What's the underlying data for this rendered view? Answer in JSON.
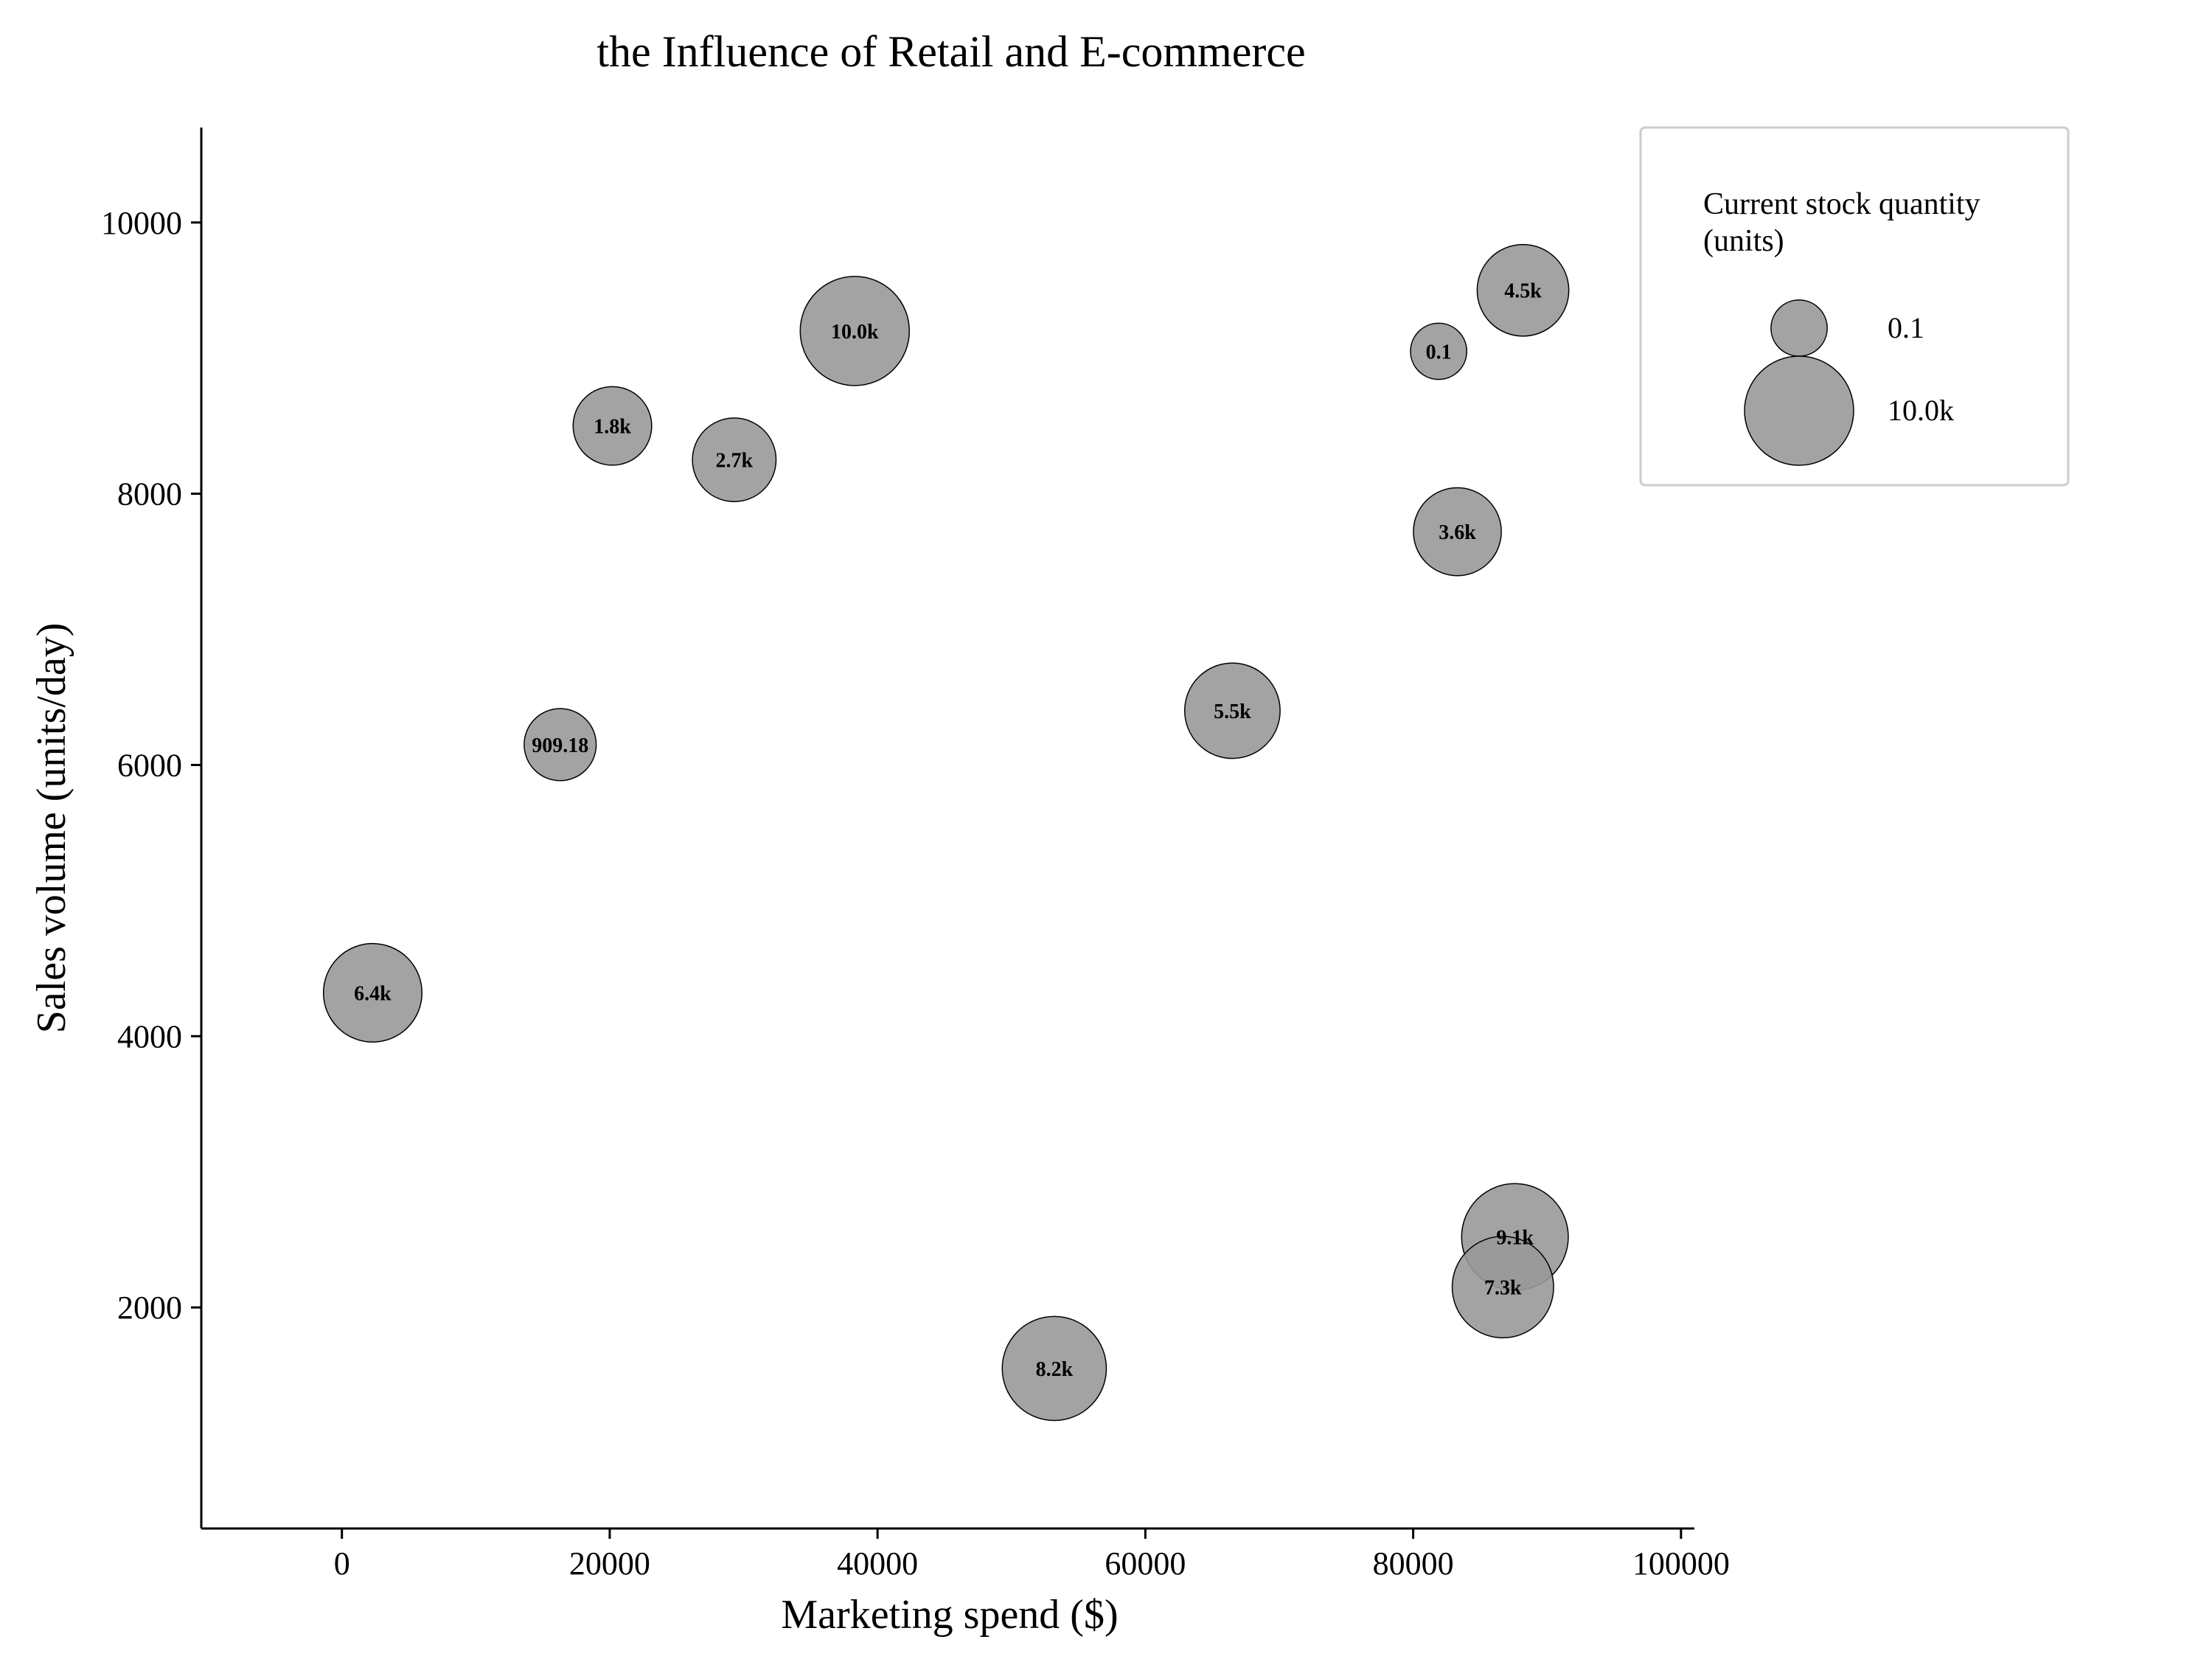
{
  "chart_data": {
    "type": "scatter",
    "title": "the Influence of Retail and E-commerce",
    "xlabel": "Marketing spend ($)",
    "ylabel": "Sales volume (units/day)",
    "xlim": [
      -10500,
      101000
    ],
    "ylim": [
      370,
      10700
    ],
    "x_ticks": [
      0,
      20000,
      40000,
      60000,
      80000,
      100000
    ],
    "y_ticks": [
      2000,
      4000,
      6000,
      8000,
      10000
    ],
    "grid": false,
    "marker_color": "#999999",
    "marker_edge_color": "#000000",
    "size_ref_max": 10000,
    "points": [
      {
        "x": 2300,
        "y": 4320,
        "size": 6400,
        "label": "6.4k"
      },
      {
        "x": 16300,
        "y": 6150,
        "size": 909.18,
        "label": "909.18"
      },
      {
        "x": 20200,
        "y": 8500,
        "size": 1800,
        "label": "1.8k"
      },
      {
        "x": 29300,
        "y": 8250,
        "size": 2700,
        "label": "2.7k"
      },
      {
        "x": 38300,
        "y": 9200,
        "size": 10000,
        "label": "10.0k"
      },
      {
        "x": 53200,
        "y": 1550,
        "size": 8200,
        "label": "8.2k"
      },
      {
        "x": 66500,
        "y": 6400,
        "size": 5500,
        "label": "5.5k"
      },
      {
        "x": 81900,
        "y": 9050,
        "size": 0.1,
        "label": "0.1"
      },
      {
        "x": 83300,
        "y": 7720,
        "size": 3600,
        "label": "3.6k"
      },
      {
        "x": 88200,
        "y": 9500,
        "size": 4500,
        "label": "4.5k"
      },
      {
        "x": 87600,
        "y": 2520,
        "size": 9100,
        "label": "9.1k"
      },
      {
        "x": 86700,
        "y": 2150,
        "size": 7300,
        "label": "7.3k"
      }
    ],
    "legend": {
      "position": "top-right",
      "title_lines": [
        "Current stock quantity",
        "(units)"
      ],
      "entries": [
        {
          "label": "0.1",
          "size": 0.1
        },
        {
          "label": "10.0k",
          "size": 10000
        }
      ]
    }
  }
}
